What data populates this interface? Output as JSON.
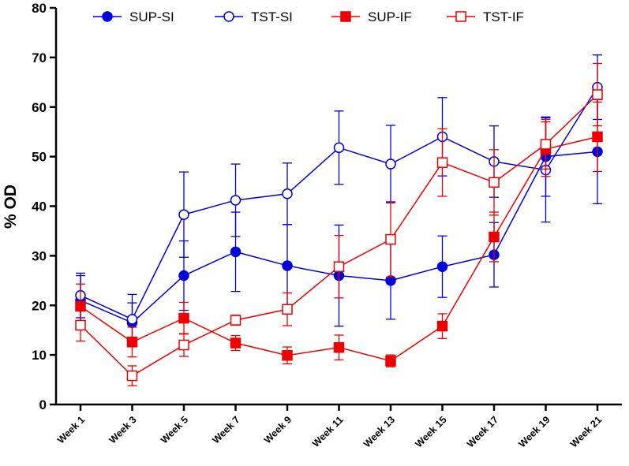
{
  "chart_data": {
    "type": "line",
    "title": "",
    "xlabel": "",
    "ylabel": "% OD",
    "ylim": [
      0,
      80
    ],
    "yticks": [
      0,
      10,
      20,
      30,
      40,
      50,
      60,
      70,
      80
    ],
    "categories": [
      "Week 1",
      "Week 3",
      "Week 5",
      "Week 7",
      "Week 9",
      "Week 11",
      "Week 13",
      "Week 15",
      "Week 17",
      "Week 19",
      "Week 21"
    ],
    "legend_position": "top",
    "series": [
      {
        "name": "SUP-SI",
        "color": "#0000dd",
        "marker": "circle",
        "filled": true,
        "values": [
          21,
          16.5,
          26,
          30.8,
          28,
          26,
          25,
          27.8,
          30.2,
          50,
          51
        ],
        "errors": [
          5,
          4,
          7,
          8,
          8.3,
          10.2,
          7.8,
          6.2,
          6.5,
          8,
          10.5
        ]
      },
      {
        "name": "TST-SI",
        "color": "#0000dd",
        "marker": "circle",
        "filled": false,
        "values": [
          22,
          17.2,
          38.3,
          41.2,
          42.5,
          51.8,
          48.5,
          54,
          49,
          47.3,
          64
        ],
        "errors": [
          4.5,
          5,
          8.6,
          7.3,
          6.2,
          7.4,
          7.8,
          7.9,
          7.2,
          10.5,
          6.5
        ]
      },
      {
        "name": "SUP-IF",
        "color": "#ee0000",
        "marker": "square",
        "filled": true,
        "values": [
          19.8,
          12.6,
          17.4,
          12.4,
          9.9,
          11.5,
          8.8,
          15.8,
          33.8,
          51.5,
          54
        ],
        "errors": [
          4.5,
          3,
          3.2,
          1.5,
          1.7,
          2.5,
          1.2,
          2.5,
          5,
          5.5,
          7
        ]
      },
      {
        "name": "TST-IF",
        "color": "#ee0000",
        "marker": "square",
        "filled": false,
        "values": [
          16,
          5.8,
          12,
          17,
          19.2,
          27.8,
          33.3,
          48.8,
          44.8,
          52.5,
          62.5
        ],
        "errors": [
          3.2,
          2,
          2.3,
          1,
          3.3,
          6.3,
          7.6,
          6.8,
          6.6,
          5,
          6.3
        ]
      }
    ]
  }
}
